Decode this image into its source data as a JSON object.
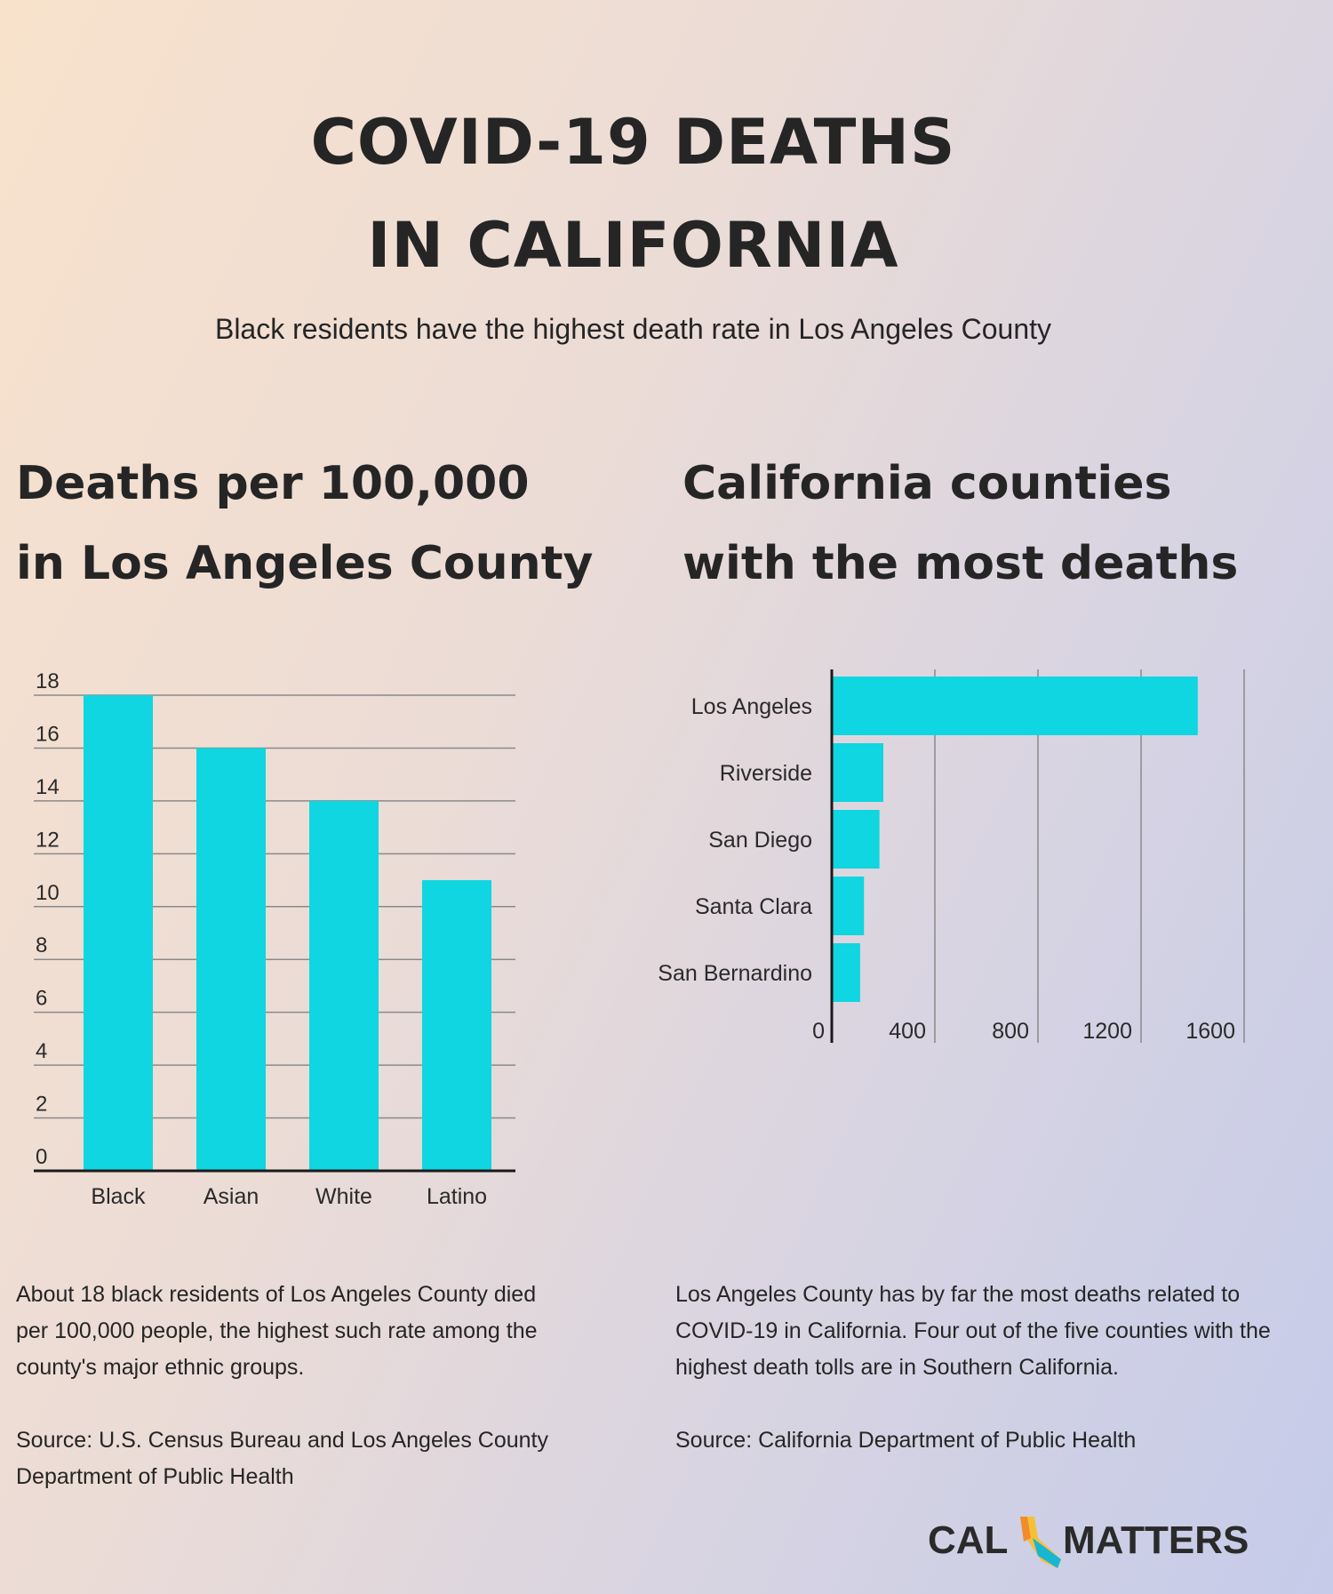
{
  "header": {
    "title_line1": "COVID-19 DEATHS",
    "title_line2": "IN CALIFORNIA",
    "subtitle": "Black residents have the highest death rate in Los Angeles County"
  },
  "left": {
    "title_line1": "Deaths per 100,000",
    "title_line2": "in Los Angeles County",
    "description": "About 18 black residents of Los Angeles County died per 100,000 people, the highest such rate among the county's major ethnic groups.",
    "source": "Source: U.S. Census Bureau and Los Angeles County Department of Public Health"
  },
  "right": {
    "title_line1": "California counties",
    "title_line2": "with the most deaths",
    "description": "Los Angeles County has by far the most deaths related to COVID-19 in California. Four out of the five counties with the highest death tolls are in Southern California.",
    "source": "Source: California Department of Public Health"
  },
  "logo": {
    "left_text": "CAL",
    "right_text": "MATTERS"
  },
  "colors": {
    "bar": "#0fd6e0",
    "grid": "#8a8a8a",
    "axis": "#1a1a1a",
    "text": "#252525"
  },
  "chart_data": [
    {
      "type": "bar",
      "orientation": "vertical",
      "categories": [
        "Black",
        "Asian",
        "White",
        "Latino"
      ],
      "values": [
        18,
        16,
        14,
        11
      ],
      "ylim": [
        0,
        18
      ],
      "yticks": [
        0,
        2,
        4,
        6,
        8,
        10,
        12,
        14,
        16,
        18
      ],
      "grid": true
    },
    {
      "type": "bar",
      "orientation": "horizontal",
      "categories": [
        "Los Angeles",
        "Riverside",
        "San Diego",
        "Santa Clara",
        "San Bernardino"
      ],
      "values": [
        1420,
        200,
        185,
        125,
        110
      ],
      "xlim": [
        0,
        1600
      ],
      "xticks": [
        0,
        400,
        800,
        1200,
        1600
      ],
      "grid": true
    }
  ]
}
